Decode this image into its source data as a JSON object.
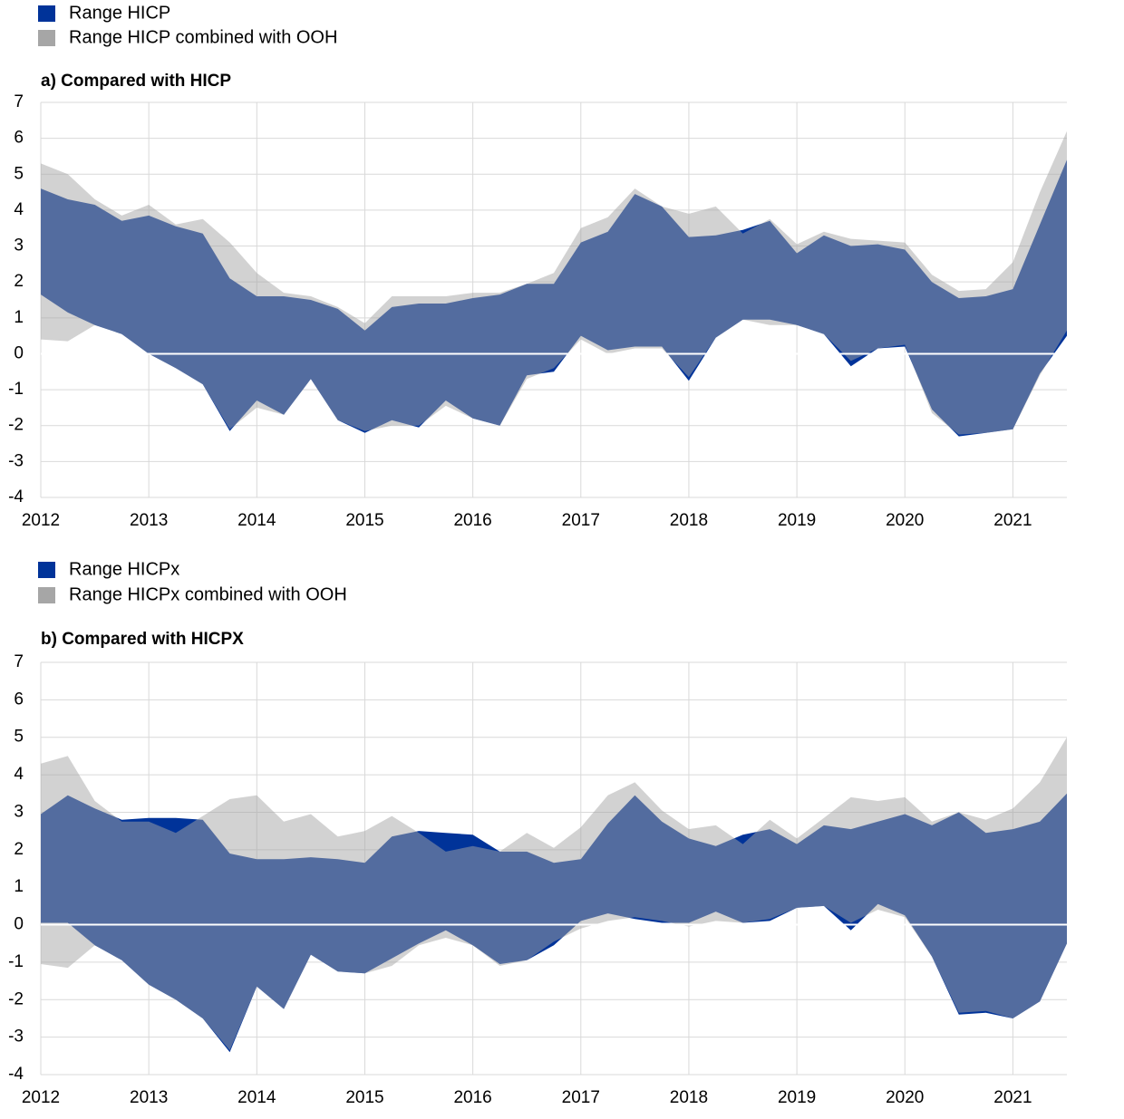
{
  "chart_data": [
    {
      "type": "range_area",
      "title": "a) Compared with HICP",
      "x": [
        2012,
        2012.25,
        2012.5,
        2012.75,
        2013,
        2013.25,
        2013.5,
        2013.75,
        2014,
        2014.25,
        2014.5,
        2014.75,
        2015,
        2015.25,
        2015.5,
        2015.75,
        2016,
        2016.25,
        2016.5,
        2016.75,
        2017,
        2017.25,
        2017.5,
        2017.75,
        2018,
        2018.25,
        2018.5,
        2018.75,
        2019,
        2019.25,
        2019.5,
        2019.75,
        2020,
        2020.25,
        2020.5,
        2020.75,
        2021,
        2021.25,
        2021.5
      ],
      "xlim": [
        2012,
        2021.5
      ],
      "xticks": [
        2012,
        2013,
        2014,
        2015,
        2016,
        2017,
        2018,
        2019,
        2020,
        2021
      ],
      "ylim": [
        -4,
        7
      ],
      "yticks": [
        -4,
        -3,
        -2,
        -1,
        0,
        1,
        2,
        3,
        4,
        5,
        6,
        7
      ],
      "grid": true,
      "series": [
        {
          "name": "Range HICP",
          "color": "#003399",
          "high": [
            4.6,
            4.3,
            4.15,
            3.7,
            3.85,
            3.55,
            3.35,
            2.1,
            1.6,
            1.6,
            1.5,
            1.25,
            0.65,
            1.3,
            1.4,
            1.4,
            1.55,
            1.65,
            1.95,
            1.95,
            3.1,
            3.4,
            4.45,
            4.1,
            3.25,
            3.3,
            3.45,
            3.7,
            2.8,
            3.3,
            3.0,
            3.05,
            2.9,
            2.0,
            1.55,
            1.6,
            1.8,
            3.6,
            5.4
          ],
          "low": [
            1.65,
            1.15,
            0.8,
            0.55,
            0.0,
            -0.4,
            -0.85,
            -2.15,
            -1.3,
            -1.7,
            -0.7,
            -1.85,
            -2.2,
            -1.85,
            -2.05,
            -1.3,
            -1.8,
            -2.0,
            -0.6,
            -0.5,
            0.5,
            0.1,
            0.2,
            0.2,
            -0.75,
            0.45,
            0.95,
            0.95,
            0.8,
            0.55,
            -0.35,
            0.15,
            0.2,
            -1.55,
            -2.3,
            -2.2,
            -2.1,
            -0.55,
            0.5
          ]
        },
        {
          "name": "Range HICP combined with OOH",
          "color": "#a6a6a6",
          "high": [
            5.3,
            5.0,
            4.3,
            3.85,
            4.15,
            3.6,
            3.75,
            3.1,
            2.25,
            1.7,
            1.6,
            1.3,
            0.85,
            1.6,
            1.6,
            1.6,
            1.7,
            1.7,
            1.95,
            2.25,
            3.5,
            3.8,
            4.6,
            4.1,
            3.9,
            4.1,
            3.35,
            3.75,
            3.05,
            3.4,
            3.2,
            3.15,
            3.1,
            2.2,
            1.75,
            1.8,
            2.55,
            4.5,
            6.2
          ],
          "low": [
            0.4,
            0.35,
            0.8,
            0.55,
            0.0,
            -0.4,
            -0.85,
            -2.1,
            -1.5,
            -1.7,
            -0.7,
            -1.85,
            -2.15,
            -2.0,
            -2.0,
            -1.45,
            -1.8,
            -2.0,
            -0.7,
            -0.4,
            0.4,
            0.0,
            0.15,
            0.15,
            -0.65,
            0.45,
            0.95,
            0.8,
            0.8,
            0.55,
            -0.2,
            0.15,
            0.25,
            -1.65,
            -2.25,
            -2.2,
            -2.1,
            -0.6,
            0.65
          ]
        }
      ]
    },
    {
      "type": "range_area",
      "title": "b) Compared with HICPX",
      "x": [
        2012,
        2012.25,
        2012.5,
        2012.75,
        2013,
        2013.25,
        2013.5,
        2013.75,
        2014,
        2014.25,
        2014.5,
        2014.75,
        2015,
        2015.25,
        2015.5,
        2015.75,
        2016,
        2016.25,
        2016.5,
        2016.75,
        2017,
        2017.25,
        2017.5,
        2017.75,
        2018,
        2018.25,
        2018.5,
        2018.75,
        2019,
        2019.25,
        2019.5,
        2019.75,
        2020,
        2020.25,
        2020.5,
        2020.75,
        2021,
        2021.25,
        2021.5
      ],
      "xlim": [
        2012,
        2021.5
      ],
      "xticks": [
        2012,
        2013,
        2014,
        2015,
        2016,
        2017,
        2018,
        2019,
        2020,
        2021
      ],
      "ylim": [
        -4,
        7
      ],
      "yticks": [
        -4,
        -3,
        -2,
        -1,
        0,
        1,
        2,
        3,
        4,
        5,
        6,
        7
      ],
      "grid": true,
      "series": [
        {
          "name": "Range HICPx",
          "color": "#003399",
          "high": [
            2.95,
            3.45,
            3.1,
            2.8,
            2.85,
            2.85,
            2.8,
            1.9,
            1.75,
            1.75,
            1.8,
            1.75,
            1.65,
            2.35,
            2.5,
            2.45,
            2.4,
            1.95,
            1.95,
            1.65,
            1.75,
            2.7,
            3.45,
            2.75,
            2.3,
            2.1,
            2.4,
            2.55,
            2.15,
            2.65,
            2.55,
            2.75,
            2.95,
            2.65,
            3.0,
            2.45,
            2.55,
            2.75,
            3.5
          ],
          "low": [
            0.05,
            0.05,
            -0.55,
            -0.95,
            -1.6,
            -2.0,
            -2.5,
            -3.4,
            -1.65,
            -2.25,
            -0.8,
            -1.25,
            -1.3,
            -0.9,
            -0.5,
            -0.15,
            -0.55,
            -1.05,
            -0.95,
            -0.55,
            0.1,
            0.3,
            0.15,
            0.05,
            0.05,
            0.35,
            0.05,
            0.1,
            0.45,
            0.5,
            -0.15,
            0.55,
            0.25,
            -0.85,
            -2.4,
            -2.35,
            -2.5,
            -2.05,
            -0.5
          ]
        },
        {
          "name": "Range HICPx combined with OOH",
          "color": "#a6a6a6",
          "high": [
            4.3,
            4.5,
            3.3,
            2.75,
            2.75,
            2.45,
            2.9,
            3.35,
            3.45,
            2.75,
            2.95,
            2.35,
            2.5,
            2.9,
            2.45,
            1.95,
            2.1,
            1.95,
            2.45,
            2.05,
            2.6,
            3.45,
            3.8,
            3.05,
            2.55,
            2.65,
            2.15,
            2.8,
            2.3,
            2.85,
            3.4,
            3.3,
            3.4,
            2.75,
            3.0,
            2.8,
            3.1,
            3.8,
            5.0
          ],
          "low": [
            -1.05,
            -1.15,
            -0.55,
            -0.95,
            -1.6,
            -2.0,
            -2.5,
            -3.35,
            -1.65,
            -2.25,
            -0.8,
            -1.25,
            -1.3,
            -1.1,
            -0.55,
            -0.35,
            -0.55,
            -1.1,
            -0.95,
            -0.45,
            -0.1,
            0.1,
            0.2,
            0.1,
            -0.05,
            0.1,
            0.05,
            0.15,
            0.45,
            0.5,
            0.05,
            0.4,
            0.2,
            -0.85,
            -2.35,
            -2.3,
            -2.5,
            -2.05,
            -0.5
          ]
        }
      ]
    }
  ]
}
